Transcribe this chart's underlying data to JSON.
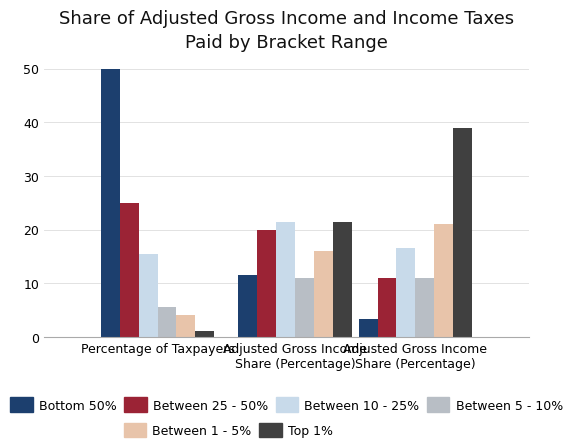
{
  "title": "Share of Adjusted Gross Income and Income Taxes\nPaid by Bracket Range",
  "categories": [
    "Percentage of Taxpayers",
    "Adjusted Gross Income\nShare (Percentage)",
    "Adjusted Gross Income\nShare (Percentage)"
  ],
  "series": [
    {
      "label": "Bottom 50%",
      "color": "#1c3f6e",
      "values": [
        50,
        11.5,
        3.3
      ]
    },
    {
      "label": "Between 25 - 50%",
      "color": "#9b2335",
      "values": [
        25,
        20,
        11
      ]
    },
    {
      "label": "Between 10 - 25%",
      "color": "#c8daea",
      "values": [
        15.5,
        21.5,
        16.5
      ]
    },
    {
      "label": "Between 5 - 10%",
      "color": "#b8bec5",
      "values": [
        5.5,
        11,
        11
      ]
    },
    {
      "label": "Between 1 - 5%",
      "color": "#e8c4aa",
      "values": [
        4,
        16,
        21
      ]
    },
    {
      "label": "Top 1%",
      "color": "#404040",
      "values": [
        1,
        21.5,
        39
      ]
    }
  ],
  "ylim": [
    0,
    52
  ],
  "yticks": [
    0,
    10,
    20,
    30,
    40,
    50
  ],
  "background_color": "#ffffff",
  "title_fontsize": 13,
  "legend_fontsize": 9,
  "tick_fontsize": 9,
  "bar_width": 0.11,
  "group_centers": [
    0.35,
    1.15,
    1.85
  ]
}
